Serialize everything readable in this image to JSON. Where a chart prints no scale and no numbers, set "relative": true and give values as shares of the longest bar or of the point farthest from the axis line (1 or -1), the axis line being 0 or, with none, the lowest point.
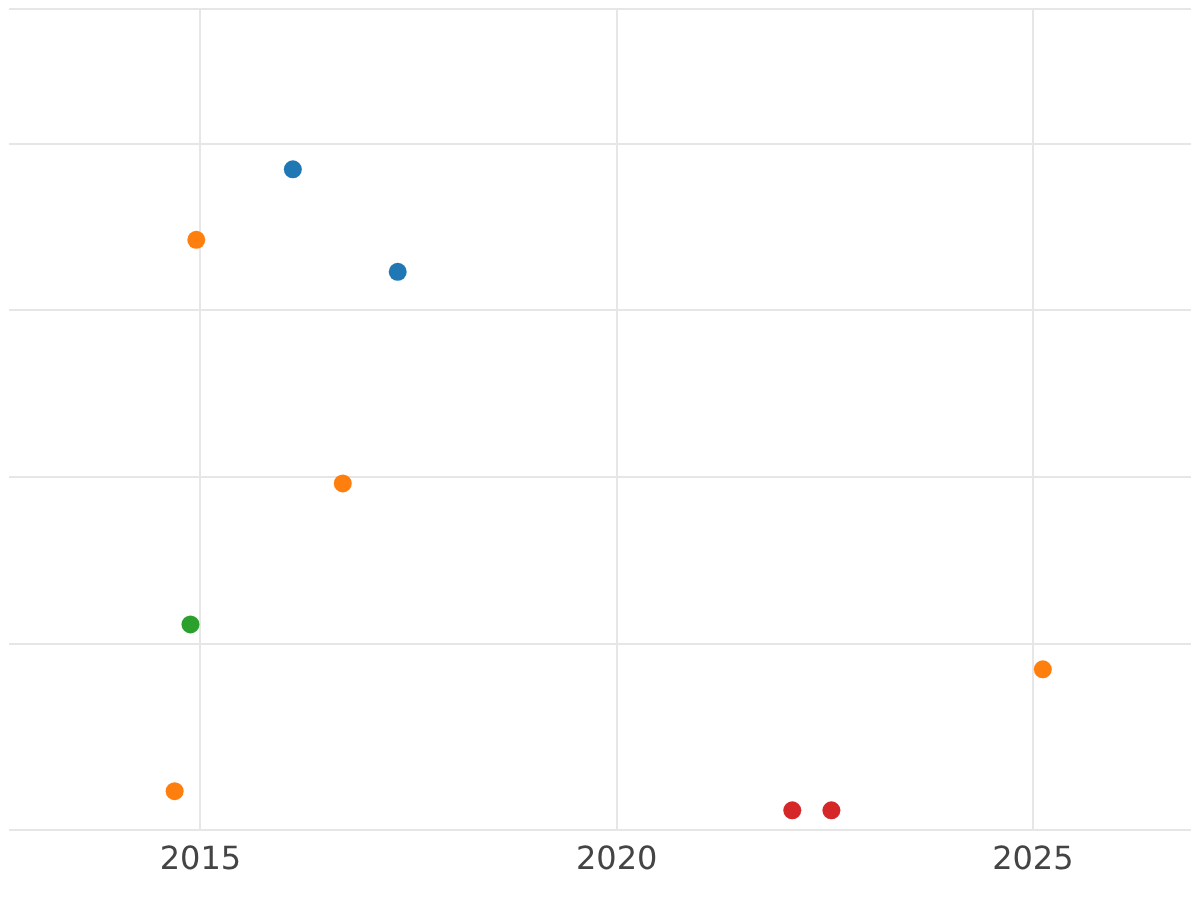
{
  "chart_data": {
    "type": "scatter",
    "relative": true,
    "xlim": [
      2012.7,
      2026.9
    ],
    "xticks": [
      2015,
      2020,
      2025
    ],
    "grid": true,
    "legend": false,
    "marker": "circle",
    "series": [
      {
        "color": "#1f77b4",
        "x": [
          2016.11,
          2017.37
        ],
        "values": [
          1,
          0.84
        ]
      },
      {
        "color": "#ff7f0e",
        "x": [
          2014.95,
          2016.71,
          2025.12,
          2014.69
        ],
        "values": [
          0.89,
          0.51,
          0.22,
          0.03
        ]
      },
      {
        "color": "#2ca02c",
        "x": [
          2014.88
        ],
        "values": [
          0.29
        ]
      },
      {
        "color": "#d62728",
        "x": [
          2022.11,
          2022.58
        ],
        "values": [
          0,
          0
        ]
      }
    ]
  }
}
